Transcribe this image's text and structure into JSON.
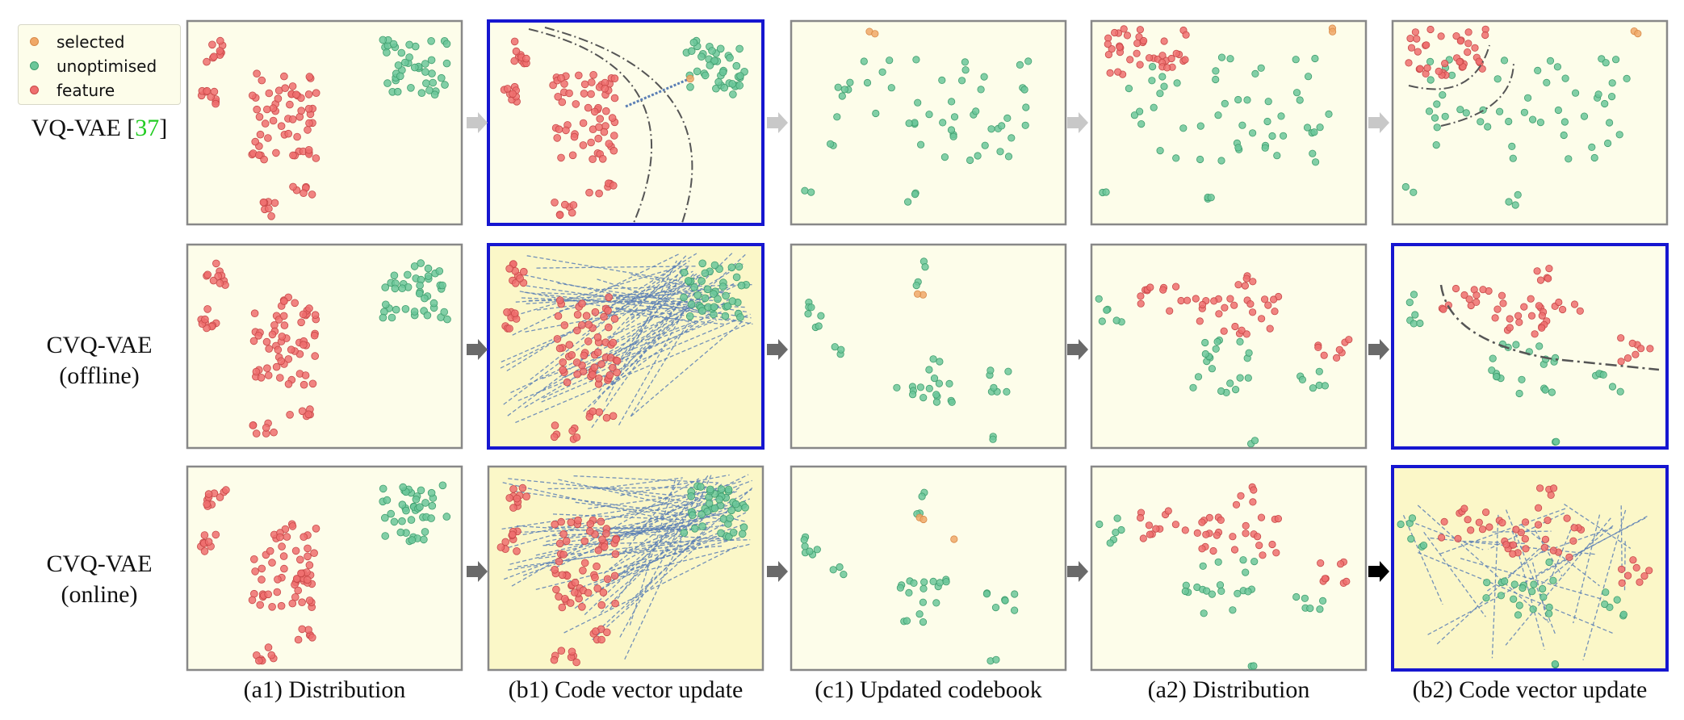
{
  "legend": {
    "items": [
      {
        "label": "selected",
        "color": "#f0a868"
      },
      {
        "label": "unoptimised",
        "color": "#6cc79a"
      },
      {
        "label": "feature",
        "color": "#ef6f6f"
      }
    ]
  },
  "rows": [
    {
      "name": "VQ-VAE",
      "cite": "37",
      "line2": ""
    },
    {
      "name": "CVQ-VAE",
      "line2": "(offline)"
    },
    {
      "name": "CVQ-VAE",
      "line2": "(online)"
    }
  ],
  "columns": [
    "(a1) Distribution",
    "(b1) Code vector update",
    "(c1) Updated codebook",
    "(a2) Distribution",
    "(b2) Code vector update"
  ],
  "colors": {
    "panel_bg": "#fdfdea",
    "panel_bg_yellow": "#fbf7c8",
    "highlight_border": "#1616d0",
    "panel_border": "#888888",
    "arrow_light": "#c8c8c8",
    "arrow_dark": "#6a6a6a",
    "arrow_black": "#000000",
    "link": "#5b7fb5"
  }
}
